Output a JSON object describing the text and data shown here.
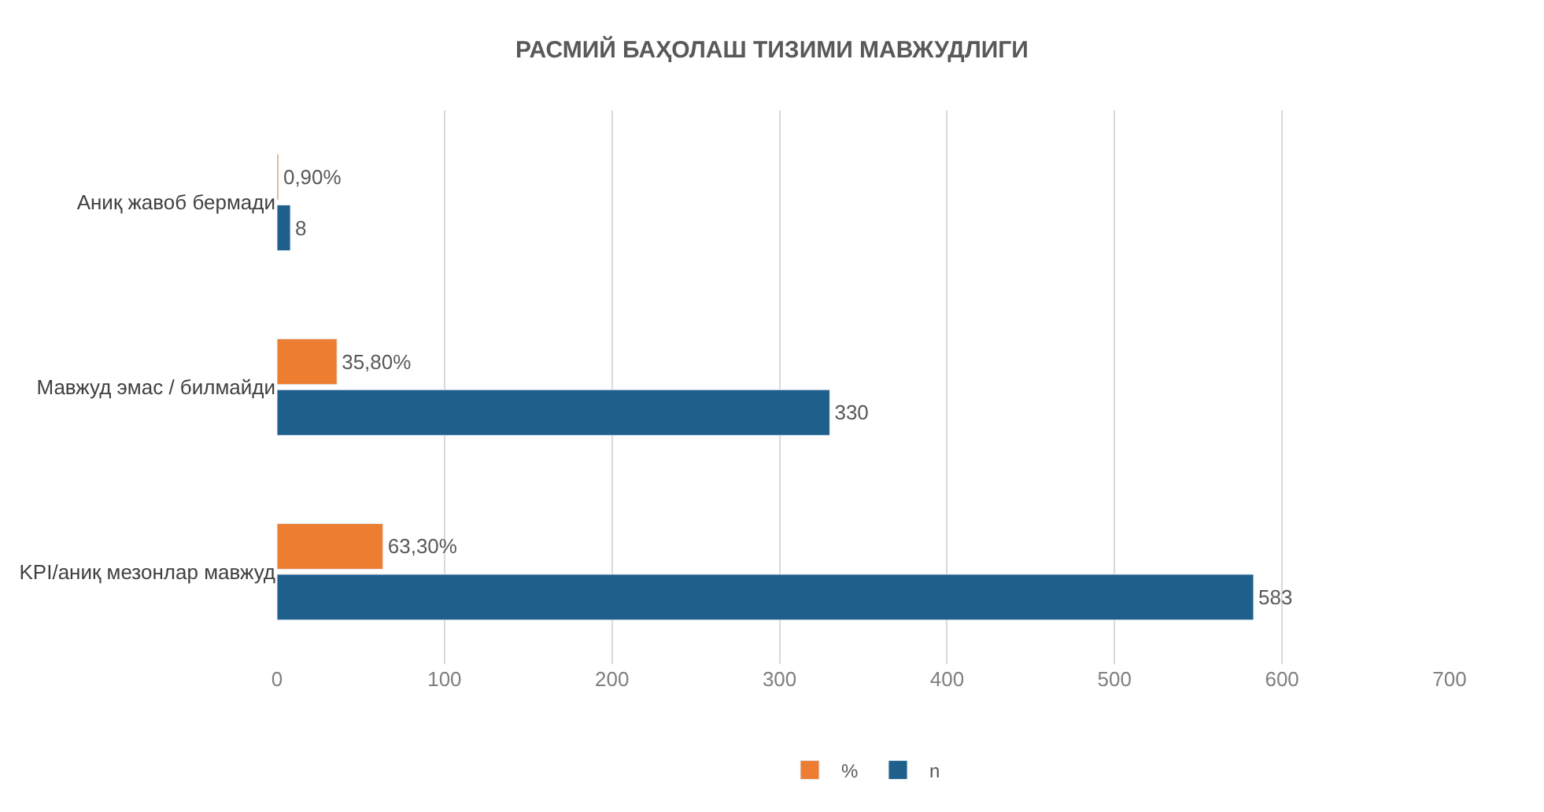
{
  "chart_data": {
    "type": "bar",
    "orientation": "horizontal",
    "title": "РАСМИЙ БАҲОЛАШ ТИЗИМИ МАВЖУДЛИГИ",
    "categories": [
      "Аниқ жавоб бермади",
      "Мавжуд эмас / билмайди",
      "KPI/аниқ мезонлар мавжуд"
    ],
    "series": [
      {
        "name": "%",
        "color": "#ed7d31",
        "values": [
          0.9,
          35.8,
          63.3
        ],
        "value_labels": [
          "0,90%",
          "35,80%",
          "63,30%"
        ]
      },
      {
        "name": "n",
        "color": "#1f5f8b",
        "values": [
          8,
          330,
          583
        ],
        "value_labels": [
          "8",
          "330",
          "583"
        ]
      }
    ],
    "xlim": [
      0,
      700
    ],
    "xticks": [
      0,
      100,
      200,
      300,
      400,
      500,
      600,
      700
    ],
    "grid": "x",
    "legend": "bottom"
  }
}
